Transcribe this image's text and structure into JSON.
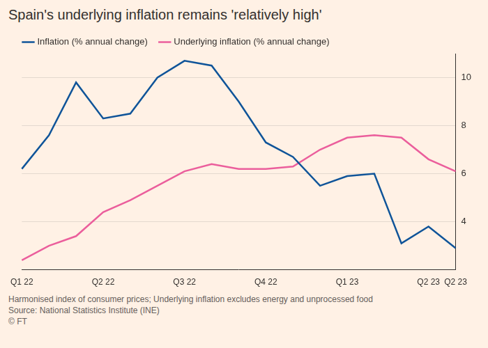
{
  "chart_data": {
    "type": "line",
    "title": "Spain's underlying inflation remains 'relatively high'",
    "categories": [
      "Q1 22",
      null,
      null,
      "Q2 22",
      null,
      null,
      "Q3 22",
      null,
      null,
      "Q4 22",
      null,
      null,
      "Q1 23",
      null,
      null,
      "Q2 23",
      "Q2 23"
    ],
    "series": [
      {
        "name": "Inflation (% annual change)",
        "color": "#0f5499",
        "values": [
          6.2,
          7.6,
          9.8,
          8.3,
          8.5,
          10.0,
          10.7,
          10.5,
          9.0,
          7.3,
          6.7,
          5.5,
          5.9,
          6.0,
          3.1,
          3.8,
          2.9
        ]
      },
      {
        "name": "Underlying inflation (% annual change)",
        "color": "#eb5e9c",
        "values": [
          2.4,
          3.0,
          3.4,
          4.4,
          4.9,
          5.5,
          6.1,
          6.4,
          6.2,
          6.2,
          6.3,
          7.0,
          7.5,
          7.6,
          7.5,
          6.6,
          6.1
        ]
      }
    ],
    "ylim": [
      2,
      11
    ],
    "yticks": [
      4,
      6,
      8,
      10
    ],
    "grid": true,
    "legend": "top-left",
    "footnotes": [
      "Harmonised index of consumer prices; Underlying inflation excludes energy and unprocessed food",
      "Source: National Statistics Institute (INE)",
      "© FT"
    ]
  }
}
